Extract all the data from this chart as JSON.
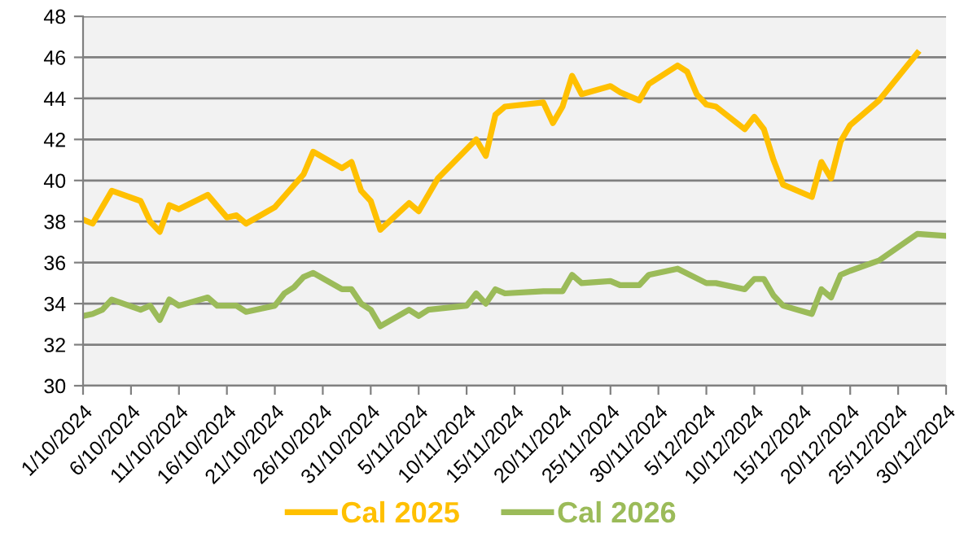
{
  "chart_data": {
    "type": "line",
    "xlim": [
      "2024-10-01",
      "2024-12-30"
    ],
    "xticks": [
      {
        "value": "2024-10-01",
        "label": "1/10/2024"
      },
      {
        "value": "2024-10-06",
        "label": "6/10/2024"
      },
      {
        "value": "2024-10-11",
        "label": "11/10/2024"
      },
      {
        "value": "2024-10-16",
        "label": "16/10/2024"
      },
      {
        "value": "2024-10-21",
        "label": "21/10/2024"
      },
      {
        "value": "2024-10-26",
        "label": "26/10/2024"
      },
      {
        "value": "2024-10-31",
        "label": "31/10/2024"
      },
      {
        "value": "2024-11-05",
        "label": "5/11/2024"
      },
      {
        "value": "2024-11-10",
        "label": "10/11/2024"
      },
      {
        "value": "2024-11-15",
        "label": "15/11/2024"
      },
      {
        "value": "2024-11-20",
        "label": "20/11/2024"
      },
      {
        "value": "2024-11-25",
        "label": "25/11/2024"
      },
      {
        "value": "2024-11-30",
        "label": "30/11/2024"
      },
      {
        "value": "2024-12-05",
        "label": "5/12/2024"
      },
      {
        "value": "2024-12-10",
        "label": "10/12/2024"
      },
      {
        "value": "2024-12-15",
        "label": "15/12/2024"
      },
      {
        "value": "2024-12-20",
        "label": "20/12/2024"
      },
      {
        "value": "2024-12-25",
        "label": "25/12/2024"
      },
      {
        "value": "2024-12-30",
        "label": "30/12/2024"
      }
    ],
    "ylim": [
      30,
      48
    ],
    "yticks": [
      30,
      32,
      34,
      36,
      38,
      40,
      42,
      44,
      46,
      48
    ],
    "grid": "y",
    "legend": "bottom",
    "marker": "none",
    "line_style": "solid",
    "series": [
      {
        "name": "Cal 2025",
        "color": "#ffc000",
        "x": [
          "2024-10-01",
          "2024-10-02",
          "2024-10-04",
          "2024-10-07",
          "2024-10-08",
          "2024-10-09",
          "2024-10-10",
          "2024-10-11",
          "2024-10-14",
          "2024-10-16",
          "2024-10-17",
          "2024-10-18",
          "2024-10-21",
          "2024-10-24",
          "2024-10-25",
          "2024-10-28",
          "2024-10-29",
          "2024-10-30",
          "2024-10-31",
          "2024-11-01",
          "2024-11-04",
          "2024-11-05",
          "2024-11-07",
          "2024-11-11",
          "2024-11-12",
          "2024-11-13",
          "2024-11-14",
          "2024-11-18",
          "2024-11-19",
          "2024-11-20",
          "2024-11-21",
          "2024-11-22",
          "2024-11-25",
          "2024-11-26",
          "2024-11-28",
          "2024-11-29",
          "2024-12-02",
          "2024-12-03",
          "2024-12-04",
          "2024-12-05",
          "2024-12-06",
          "2024-12-09",
          "2024-12-10",
          "2024-12-11",
          "2024-12-12",
          "2024-12-13",
          "2024-12-16",
          "2024-12-17",
          "2024-12-18",
          "2024-12-19",
          "2024-12-20",
          "2024-12-23",
          "2024-12-27"
        ],
        "values": [
          38.1,
          37.9,
          39.5,
          39.0,
          38.0,
          37.5,
          38.8,
          38.6,
          39.3,
          38.2,
          38.3,
          37.9,
          38.7,
          40.3,
          41.4,
          40.6,
          40.9,
          39.5,
          39.0,
          37.6,
          38.9,
          38.5,
          40.1,
          42.0,
          41.2,
          43.2,
          43.6,
          43.8,
          42.8,
          43.6,
          45.1,
          44.2,
          44.6,
          44.3,
          43.9,
          44.7,
          45.6,
          45.3,
          44.2,
          43.7,
          43.6,
          42.5,
          43.1,
          42.5,
          41.0,
          39.8,
          39.2,
          40.9,
          40.1,
          41.9,
          42.7,
          43.9,
          46.2
        ]
      },
      {
        "name": "Cal 2026",
        "color": "#9bbb59",
        "x": [
          "2024-10-01",
          "2024-10-02",
          "2024-10-03",
          "2024-10-04",
          "2024-10-07",
          "2024-10-08",
          "2024-10-09",
          "2024-10-10",
          "2024-10-11",
          "2024-10-14",
          "2024-10-15",
          "2024-10-17",
          "2024-10-18",
          "2024-10-21",
          "2024-10-22",
          "2024-10-23",
          "2024-10-24",
          "2024-10-25",
          "2024-10-28",
          "2024-10-29",
          "2024-10-30",
          "2024-10-31",
          "2024-11-01",
          "2024-11-04",
          "2024-11-05",
          "2024-11-06",
          "2024-11-08",
          "2024-11-10",
          "2024-11-11",
          "2024-11-12",
          "2024-11-13",
          "2024-11-14",
          "2024-11-18",
          "2024-11-19",
          "2024-11-20",
          "2024-11-21",
          "2024-11-22",
          "2024-11-25",
          "2024-11-26",
          "2024-11-28",
          "2024-11-29",
          "2024-12-02",
          "2024-12-05",
          "2024-12-06",
          "2024-12-09",
          "2024-12-10",
          "2024-12-11",
          "2024-12-12",
          "2024-12-13",
          "2024-12-16",
          "2024-12-17",
          "2024-12-18",
          "2024-12-19",
          "2024-12-20",
          "2024-12-23",
          "2024-12-27",
          "2024-12-30"
        ],
        "values": [
          33.4,
          33.5,
          33.7,
          34.2,
          33.7,
          33.9,
          33.2,
          34.2,
          33.9,
          34.3,
          33.9,
          33.9,
          33.6,
          33.9,
          34.5,
          34.8,
          35.3,
          35.5,
          34.7,
          34.7,
          34.0,
          33.7,
          32.9,
          33.7,
          33.4,
          33.7,
          33.8,
          33.9,
          34.5,
          34.0,
          34.7,
          34.5,
          34.6,
          34.6,
          34.6,
          35.4,
          35.0,
          35.1,
          34.9,
          34.9,
          35.4,
          35.7,
          35.0,
          35.0,
          34.7,
          35.2,
          35.2,
          34.4,
          33.9,
          33.5,
          34.7,
          34.3,
          35.4,
          35.6,
          36.1,
          37.4,
          37.3
        ]
      }
    ]
  }
}
